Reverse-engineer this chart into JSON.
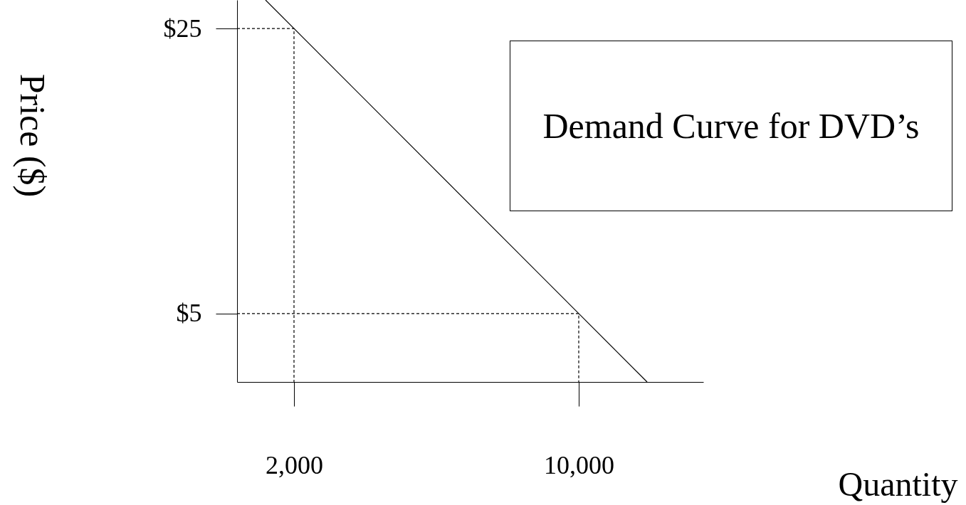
{
  "chart_data": {
    "type": "line",
    "title": "Demand Curve for DVD’s",
    "xlabel": "Quantity",
    "ylabel": "Price ($)",
    "xlim": [
      400,
      13500
    ],
    "ylim": [
      0.2,
      27
    ],
    "xticks": [
      {
        "value": 2000,
        "label": "2,000"
      },
      {
        "value": 10000,
        "label": "10,000"
      }
    ],
    "yticks": [
      {
        "value": 5,
        "label": "$5"
      },
      {
        "value": 25,
        "label": "$25"
      }
    ],
    "series": [
      {
        "color": "#000000",
        "line_style": "solid",
        "x": [
          1200,
          11920
        ],
        "values": [
          27,
          0.2
        ]
      },
      {
        "color": "#000000",
        "line_style": "dashed",
        "x": [
          400,
          2000,
          2000
        ],
        "values": [
          25,
          25,
          0.2
        ]
      },
      {
        "color": "#000000",
        "line_style": "dashed",
        "x": [
          400,
          10000,
          10000
        ],
        "values": [
          5,
          5,
          0.2
        ]
      }
    ],
    "grid": false,
    "marker": "none"
  }
}
